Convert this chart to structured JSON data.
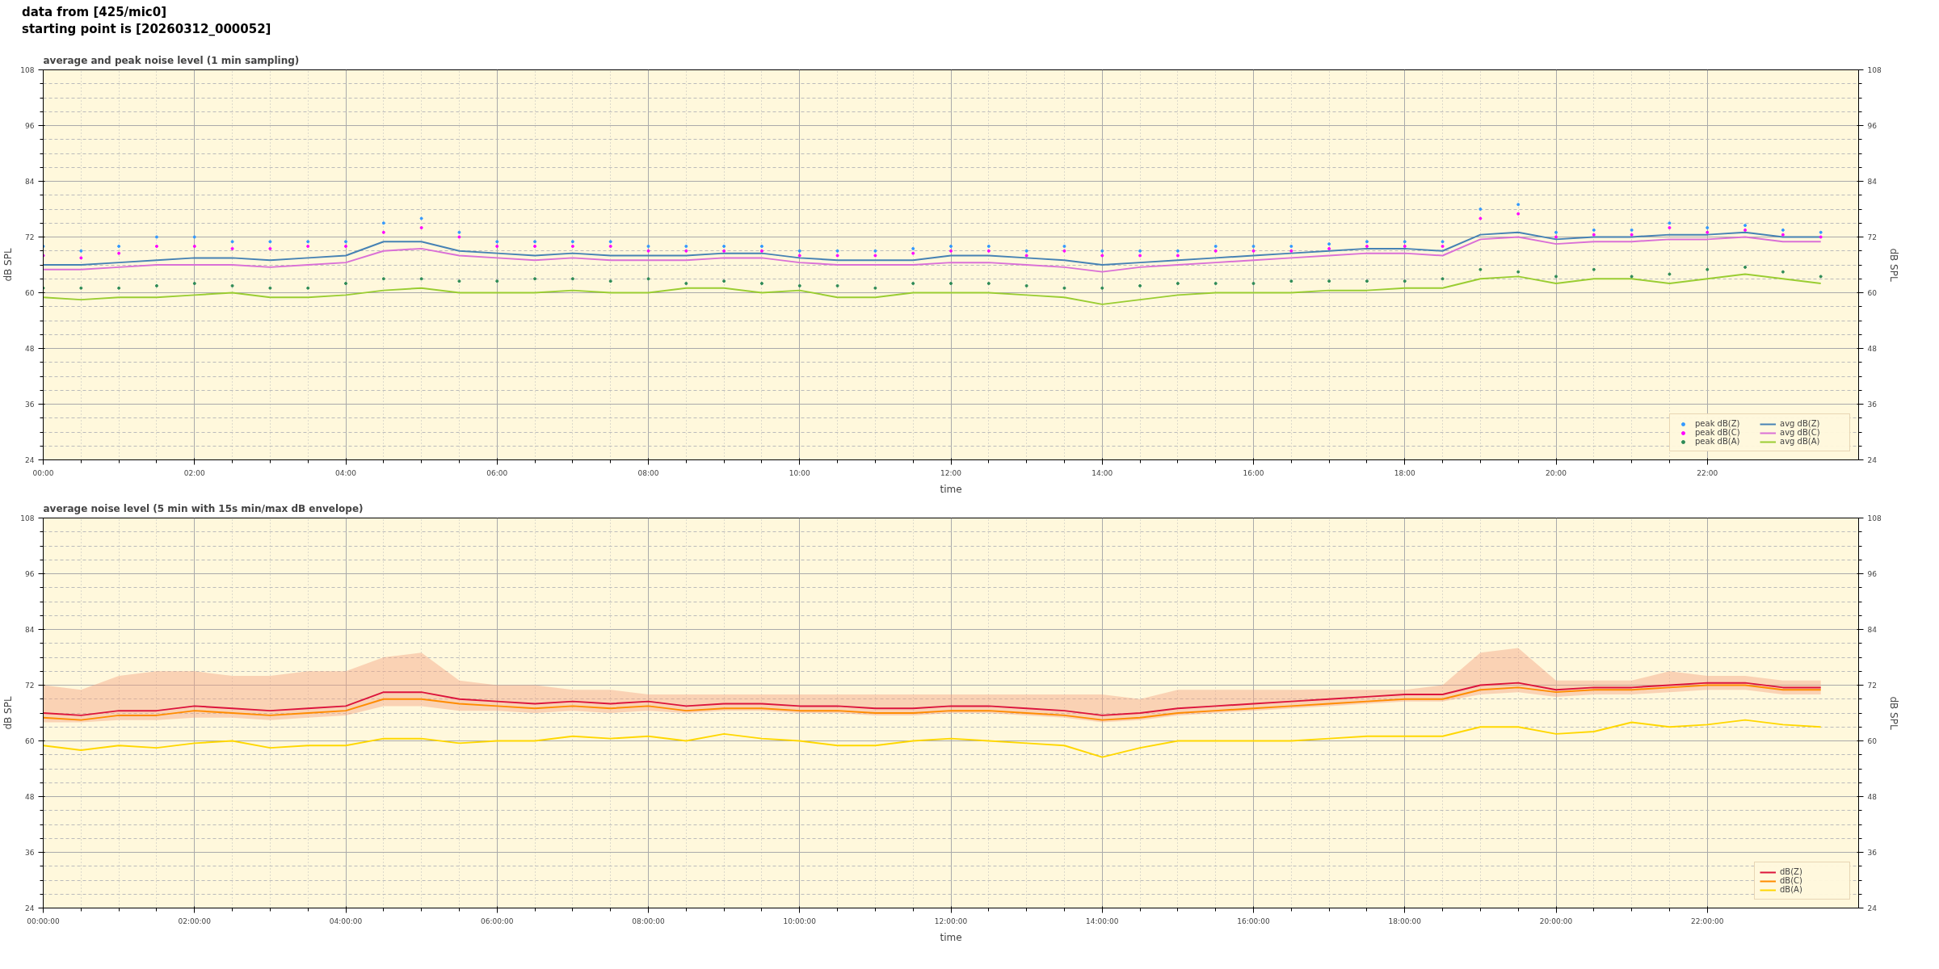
{
  "chart_data": [
    {
      "type": "line",
      "title": "average and peak noise level (1 min sampling)",
      "annotations": [
        "data from [425/mic0]",
        "starting point is [20260312_000052]"
      ],
      "xlabel": "time",
      "ylabel": "dB SPL",
      "y2label": "dB SPL",
      "x": [
        0,
        0.5,
        1,
        1.5,
        2,
        2.5,
        3,
        3.5,
        4,
        4.5,
        5,
        5.5,
        6,
        6.5,
        7,
        7.5,
        8,
        8.5,
        9,
        9.5,
        10,
        10.5,
        11,
        11.5,
        12,
        12.5,
        13,
        13.5,
        14,
        14.5,
        15,
        15.5,
        16,
        16.5,
        17,
        17.5,
        18,
        18.5,
        19,
        19.5,
        20,
        20.5,
        21,
        21.5,
        22,
        22.5,
        23,
        23.5
      ],
      "xlim": [
        0,
        24
      ],
      "xticks": [
        {
          "value": 0,
          "label": "00:00"
        },
        {
          "value": 2,
          "label": "02:00"
        },
        {
          "value": 4,
          "label": "04:00"
        },
        {
          "value": 6,
          "label": "06:00"
        },
        {
          "value": 8,
          "label": "08:00"
        },
        {
          "value": 10,
          "label": "10:00"
        },
        {
          "value": 12,
          "label": "12:00"
        },
        {
          "value": 14,
          "label": "14:00"
        },
        {
          "value": 16,
          "label": "16:00"
        },
        {
          "value": 18,
          "label": "18:00"
        },
        {
          "value": 20,
          "label": "20:00"
        },
        {
          "value": 22,
          "label": "22:00"
        }
      ],
      "ylim": [
        24,
        108
      ],
      "yticks": [
        24,
        36,
        48,
        60,
        72,
        84,
        96,
        108
      ],
      "y2lim": [
        24,
        108
      ],
      "y2ticks": [
        24,
        36,
        48,
        60,
        72,
        84,
        96,
        108
      ],
      "grid": true,
      "legend": "bottom right",
      "series": [
        {
          "name": "peak dB(Z)",
          "type": "scatter",
          "marker": "circle",
          "color": "#3399ff",
          "values": [
            70,
            69,
            70,
            72,
            72,
            71,
            71,
            71,
            71,
            75,
            76,
            73,
            71,
            71,
            71,
            71,
            70,
            70,
            70,
            70,
            69,
            69,
            69,
            69.5,
            70,
            70,
            69,
            70,
            69,
            69,
            69,
            70,
            70,
            70,
            70.5,
            71,
            71,
            71,
            78,
            79,
            73,
            73.5,
            73.5,
            75,
            74,
            74.5,
            73.5,
            73
          ]
        },
        {
          "name": "peak dB(C)",
          "type": "scatter",
          "marker": "circle",
          "color": "#ff00ff",
          "values": [
            68,
            67.5,
            68.5,
            70,
            70,
            69.5,
            69.5,
            70,
            70,
            73,
            74,
            72,
            70,
            70,
            70,
            70,
            69,
            69,
            69,
            69,
            68,
            68,
            68,
            68.5,
            69,
            69,
            68,
            69,
            68,
            68,
            68,
            69,
            69,
            69,
            69.5,
            70,
            70,
            70,
            76,
            77,
            72,
            72.5,
            72.5,
            74,
            73,
            73.5,
            72.5,
            72
          ]
        },
        {
          "name": "peak dB(A)",
          "type": "scatter",
          "marker": "circle",
          "color": "#2e8b57",
          "values": [
            61,
            61,
            61,
            61.5,
            62,
            61.5,
            61,
            61,
            62,
            63,
            63,
            62.5,
            62.5,
            63,
            63,
            62.5,
            63,
            62,
            62.5,
            62,
            61.5,
            61.5,
            61,
            62,
            62,
            62,
            61.5,
            61,
            61,
            61.5,
            62,
            62,
            62,
            62.5,
            62.5,
            62.5,
            62.5,
            63,
            65,
            64.5,
            63.5,
            65,
            63.5,
            64,
            65,
            65.5,
            64.5,
            63.5
          ]
        },
        {
          "name": "avg dB(Z)",
          "type": "line",
          "color": "#4682b4",
          "values": [
            66,
            66,
            66.5,
            67,
            67.5,
            67.5,
            67,
            67.5,
            68,
            71,
            71,
            69,
            68.5,
            68,
            68.5,
            68,
            68,
            68,
            68.5,
            68.5,
            67.5,
            67,
            67,
            67,
            68,
            68,
            67.5,
            67,
            66,
            66.5,
            67,
            67.5,
            68,
            68.5,
            69,
            69.5,
            69.5,
            69,
            72.5,
            73,
            71.5,
            72,
            72,
            72.5,
            72.5,
            73,
            72,
            72
          ]
        },
        {
          "name": "avg dB(C)",
          "type": "line",
          "color": "#da70d6",
          "values": [
            65,
            65,
            65.5,
            66,
            66,
            66,
            65.5,
            66,
            66.5,
            69,
            69.5,
            68,
            67.5,
            67,
            67.5,
            67,
            67,
            67,
            67.5,
            67.5,
            66.5,
            66,
            66,
            66,
            66.5,
            66.5,
            66,
            65.5,
            64.5,
            65.5,
            66,
            66.5,
            67,
            67.5,
            68,
            68.5,
            68.5,
            68,
            71.5,
            72,
            70.5,
            71,
            71,
            71.5,
            71.5,
            72,
            71,
            71
          ]
        },
        {
          "name": "avg dB(A)",
          "type": "line",
          "color": "#9acd32",
          "values": [
            59,
            58.5,
            59,
            59,
            59.5,
            60,
            59,
            59,
            59.5,
            60.5,
            61,
            60,
            60,
            60,
            60.5,
            60,
            60,
            61,
            61,
            60,
            60.5,
            59,
            59,
            60,
            60,
            60,
            59.5,
            59,
            57.5,
            58.5,
            59.5,
            60,
            60,
            60,
            60.5,
            60.5,
            61,
            61,
            63,
            63.5,
            62,
            63,
            63,
            62,
            63,
            64,
            63,
            62
          ]
        }
      ]
    },
    {
      "type": "line",
      "title": "average noise level (5 min with 15s min/max dB envelope)",
      "xlabel": "time",
      "ylabel": "dB SPL",
      "y2label": "dB SPL",
      "x": [
        0,
        0.5,
        1,
        1.5,
        2,
        2.5,
        3,
        3.5,
        4,
        4.5,
        5,
        5.5,
        6,
        6.5,
        7,
        7.5,
        8,
        8.5,
        9,
        9.5,
        10,
        10.5,
        11,
        11.5,
        12,
        12.5,
        13,
        13.5,
        14,
        14.5,
        15,
        15.5,
        16,
        16.5,
        17,
        17.5,
        18,
        18.5,
        19,
        19.5,
        20,
        20.5,
        21,
        21.5,
        22,
        22.5,
        23,
        23.5
      ],
      "xlim": [
        0,
        24
      ],
      "xticks": [
        {
          "value": 0,
          "label": "00:00:00"
        },
        {
          "value": 2,
          "label": "02:00:00"
        },
        {
          "value": 4,
          "label": "04:00:00"
        },
        {
          "value": 6,
          "label": "06:00:00"
        },
        {
          "value": 8,
          "label": "08:00:00"
        },
        {
          "value": 10,
          "label": "10:00:00"
        },
        {
          "value": 12,
          "label": "12:00:00"
        },
        {
          "value": 14,
          "label": "14:00:00"
        },
        {
          "value": 16,
          "label": "16:00:00"
        },
        {
          "value": 18,
          "label": "18:00:00"
        },
        {
          "value": 20,
          "label": "20:00:00"
        },
        {
          "value": 22,
          "label": "22:00:00"
        }
      ],
      "ylim": [
        24,
        108
      ],
      "yticks": [
        24,
        36,
        48,
        60,
        72,
        84,
        96,
        108
      ],
      "y2lim": [
        24,
        108
      ],
      "y2ticks": [
        24,
        36,
        48,
        60,
        72,
        84,
        96,
        108
      ],
      "grid": true,
      "legend": "bottom right",
      "marker": "none",
      "line_style": "solid",
      "series": [
        {
          "name": "dB(Z)",
          "color": "#dc143c",
          "values": [
            66,
            65.5,
            66.5,
            66.5,
            67.5,
            67,
            66.5,
            67,
            67.5,
            70.5,
            70.5,
            69,
            68.5,
            68,
            68.5,
            68,
            68.5,
            67.5,
            68,
            68,
            67.5,
            67.5,
            67,
            67,
            67.5,
            67.5,
            67,
            66.5,
            65.5,
            66,
            67,
            67.5,
            68,
            68.5,
            69,
            69.5,
            70,
            70,
            72,
            72.5,
            71,
            71.5,
            71.5,
            72,
            72.5,
            72.5,
            71.5,
            71.5
          ],
          "lower": [
            64,
            64,
            64.5,
            64.5,
            65,
            65,
            64.5,
            65,
            65.5,
            67.5,
            67.5,
            66.5,
            66.5,
            66,
            66.5,
            66,
            66.5,
            66,
            66.5,
            66.5,
            66,
            66,
            65.5,
            65.5,
            66,
            66,
            65.5,
            65,
            64,
            64.5,
            65.5,
            66,
            66.5,
            67,
            67.5,
            68,
            68.5,
            68.5,
            70,
            70.5,
            69.5,
            70,
            70,
            70.5,
            71,
            71,
            70,
            70
          ],
          "upper": [
            72,
            71,
            74,
            75,
            75,
            74,
            74,
            75,
            75,
            78,
            79,
            73,
            72,
            72,
            71,
            71,
            70,
            70,
            70,
            70,
            70,
            70,
            70,
            70,
            70,
            70,
            70,
            70,
            70,
            69,
            71,
            71,
            71,
            71,
            71,
            71,
            71,
            72,
            79,
            80,
            73,
            73,
            73,
            75,
            74,
            74,
            73,
            73
          ]
        },
        {
          "name": "dB(C)",
          "color": "#ff8c00",
          "values": [
            65,
            64.5,
            65.5,
            65.5,
            66.5,
            66,
            65.5,
            66,
            66.5,
            69,
            69,
            68,
            67.5,
            67,
            67.5,
            67,
            67.5,
            66.5,
            67,
            67,
            66.5,
            66.5,
            66,
            66,
            66.5,
            66.5,
            66,
            65.5,
            64.5,
            65,
            66,
            66.5,
            67,
            67.5,
            68,
            68.5,
            69,
            69,
            71,
            71.5,
            70.5,
            71,
            71,
            71.5,
            72,
            72,
            71,
            71
          ]
        },
        {
          "name": "dB(A)",
          "color": "#ffd700",
          "values": [
            59,
            58,
            59,
            58.5,
            59.5,
            60,
            58.5,
            59,
            59,
            60.5,
            60.5,
            59.5,
            60,
            60,
            61,
            60.5,
            61,
            60,
            61.5,
            60.5,
            60,
            59,
            59,
            60,
            60.5,
            60,
            59.5,
            59,
            56.5,
            58.5,
            60,
            60,
            60,
            60,
            60.5,
            61,
            61,
            61,
            63,
            63,
            61.5,
            62,
            64,
            63,
            63.5,
            64.5,
            63.5,
            63
          ]
        }
      ]
    }
  ]
}
